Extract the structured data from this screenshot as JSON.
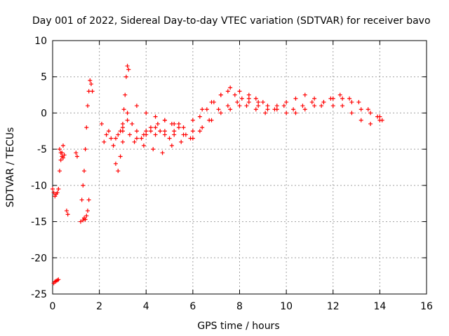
{
  "chart_data": {
    "type": "scatter",
    "title": "Day 001 of 2022, Sidereal Day-to-day VTEC variation (SDTVAR) for receiver bavo",
    "xlabel": "GPS time / hours",
    "ylabel": "SDTVAR / TECUs",
    "xlim": [
      0,
      16
    ],
    "ylim": [
      -25,
      10
    ],
    "x_ticks": [
      "0",
      "2",
      "4",
      "6",
      "8",
      "10",
      "12",
      "14",
      "16"
    ],
    "y_ticks": [
      "10",
      "5",
      "0",
      "-5",
      "-10",
      "-15",
      "-20",
      "-25"
    ],
    "grid": true,
    "marker": "+",
    "series": [
      {
        "name": "SDTVAR",
        "color": "#ff0000",
        "x": [
          0.0,
          0.05,
          0.1,
          0.15,
          0.2,
          0.25,
          0.05,
          0.1,
          0.15,
          0.2,
          0.25,
          0.3,
          0.35,
          0.4,
          0.45,
          0.3,
          0.35,
          0.4,
          0.45,
          0.5,
          0.6,
          0.65,
          1.0,
          1.05,
          1.2,
          1.3,
          1.35,
          1.4,
          1.45,
          1.5,
          1.55,
          1.25,
          1.3,
          1.35,
          1.4,
          1.45,
          1.5,
          1.55,
          1.6,
          1.65,
          1.7,
          2.1,
          2.2,
          2.3,
          2.4,
          2.5,
          2.6,
          2.7,
          2.8,
          2.9,
          3.0,
          2.7,
          2.8,
          2.9,
          3.0,
          3.05,
          3.1,
          3.15,
          3.2,
          3.25,
          3.0,
          3.2,
          3.4,
          3.6,
          3.8,
          4.0,
          4.2,
          4.4,
          4.6,
          4.8,
          5.0,
          5.2,
          5.4,
          3.0,
          3.3,
          3.6,
          3.9,
          4.2,
          4.5,
          4.8,
          5.1,
          5.4,
          5.7,
          6.0,
          6.3,
          6.6,
          6.9,
          7.2,
          7.5,
          7.8,
          8.1,
          8.4,
          8.7,
          9.0,
          3.2,
          3.6,
          4.0,
          4.4,
          4.8,
          5.2,
          5.6,
          6.0,
          6.4,
          6.8,
          7.2,
          7.6,
          8.0,
          8.4,
          8.8,
          9.2,
          9.6,
          10.0,
          10.4,
          10.8,
          11.2,
          11.6,
          12.0,
          12.4,
          12.8,
          13.2,
          13.6,
          14.0,
          3.5,
          3.9,
          4.3,
          4.7,
          5.1,
          5.5,
          5.9,
          6.3,
          6.7,
          7.1,
          7.5,
          7.9,
          8.3,
          8.7,
          9.1,
          9.5,
          9.9,
          10.3,
          10.7,
          11.1,
          11.5,
          11.9,
          12.3,
          12.7,
          13.1,
          13.5,
          13.9,
          14.1,
          4.0,
          4.4,
          4.8,
          5.2,
          5.6,
          6.0,
          6.4,
          6.8,
          7.2,
          7.6,
          8.0,
          8.4,
          8.8,
          9.2,
          9.6,
          10.0,
          10.4,
          10.8,
          11.2,
          11.6,
          12.0,
          12.4,
          12.8,
          13.2,
          13.6,
          14.0
        ],
        "y": [
          -10.5,
          -11.0,
          -11.5,
          -11.2,
          -11.0,
          -10.5,
          -23.5,
          -23.3,
          -23.2,
          -23.1,
          -23.0,
          -8.0,
          -6.5,
          -5.5,
          -4.5,
          -5.0,
          -5.5,
          -6.0,
          -6.2,
          -5.8,
          -13.5,
          -14.0,
          -5.5,
          -6.0,
          -15.0,
          -14.8,
          -14.5,
          -14.7,
          -14.2,
          -13.5,
          -12.0,
          -12.0,
          -10.0,
          -8.0,
          -5.0,
          -2.0,
          1.0,
          3.0,
          4.5,
          4.0,
          3.0,
          -1.5,
          -4.0,
          -3.0,
          -2.5,
          -3.5,
          -4.5,
          -7.0,
          -8.0,
          -6.0,
          -4.0,
          -3.5,
          -3.0,
          -2.5,
          -1.5,
          0.5,
          2.5,
          5.0,
          6.5,
          6.0,
          -2.0,
          -1.0,
          -1.5,
          -2.5,
          -3.5,
          -3.0,
          -2.5,
          -2.0,
          -2.5,
          -3.0,
          -3.5,
          -2.5,
          -1.5,
          -2.5,
          -3.0,
          -3.5,
          -3.0,
          -2.0,
          -1.5,
          -1.0,
          -1.5,
          -2.0,
          -3.0,
          -2.5,
          -0.5,
          0.5,
          1.5,
          2.5,
          3.0,
          2.5,
          2.0,
          2.5,
          2.0,
          1.5,
          0.0,
          1.0,
          0.0,
          -0.5,
          -1.0,
          -1.5,
          -2.0,
          -1.0,
          0.5,
          1.5,
          2.5,
          3.5,
          3.0,
          2.0,
          1.0,
          0.5,
          1.0,
          1.5,
          2.0,
          2.5,
          2.0,
          1.5,
          1.0,
          2.0,
          1.5,
          0.5,
          0.0,
          -0.5,
          -4.0,
          -4.5,
          -5.0,
          -5.5,
          -4.5,
          -4.0,
          -3.5,
          -2.5,
          -1.0,
          0.5,
          1.0,
          1.5,
          1.0,
          0.5,
          0.0,
          0.5,
          1.0,
          0.5,
          1.0,
          1.5,
          1.0,
          2.0,
          2.5,
          2.0,
          1.5,
          0.5,
          -0.5,
          -1.0,
          -2.5,
          -3.0,
          -2.5,
          -3.0,
          -3.0,
          -3.5,
          -2.0,
          -1.0,
          0.0,
          0.5,
          1.0,
          1.5,
          1.5,
          1.0,
          0.5,
          0.0,
          0.0,
          0.5,
          1.0,
          1.5,
          2.0,
          1.0,
          0.0,
          -1.0,
          -1.5,
          -1.0
        ]
      }
    ]
  }
}
